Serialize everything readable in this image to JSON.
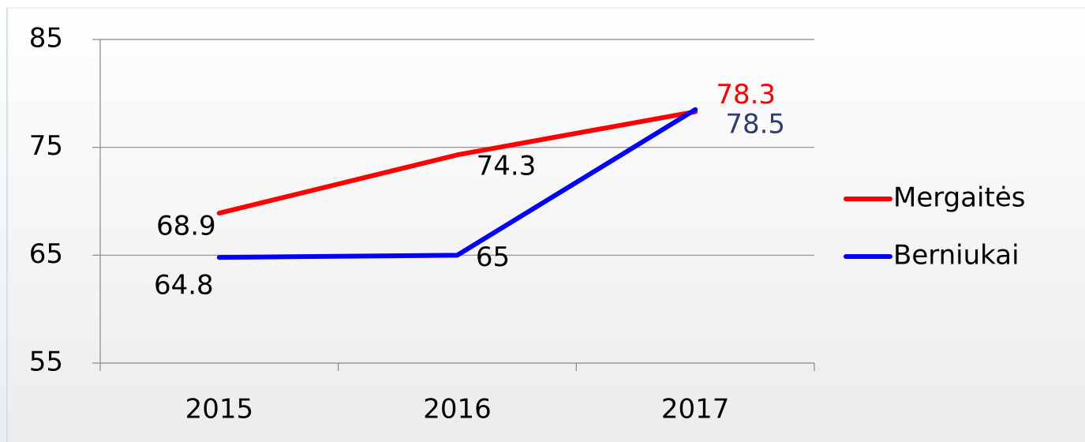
{
  "chart_data": {
    "type": "line",
    "categories": [
      "2015",
      "2016",
      "2017"
    ],
    "series": [
      {
        "name": "Mergaitės",
        "color": "#ff0000",
        "values": [
          68.9,
          74.3,
          78.3
        ]
      },
      {
        "name": "Berniukai",
        "color": "#0000ff",
        "values": [
          64.8,
          65,
          78.5
        ]
      }
    ],
    "ylim": [
      55,
      85
    ],
    "yticks": [
      55,
      65,
      75,
      85
    ],
    "grid": true,
    "legend": "right"
  }
}
